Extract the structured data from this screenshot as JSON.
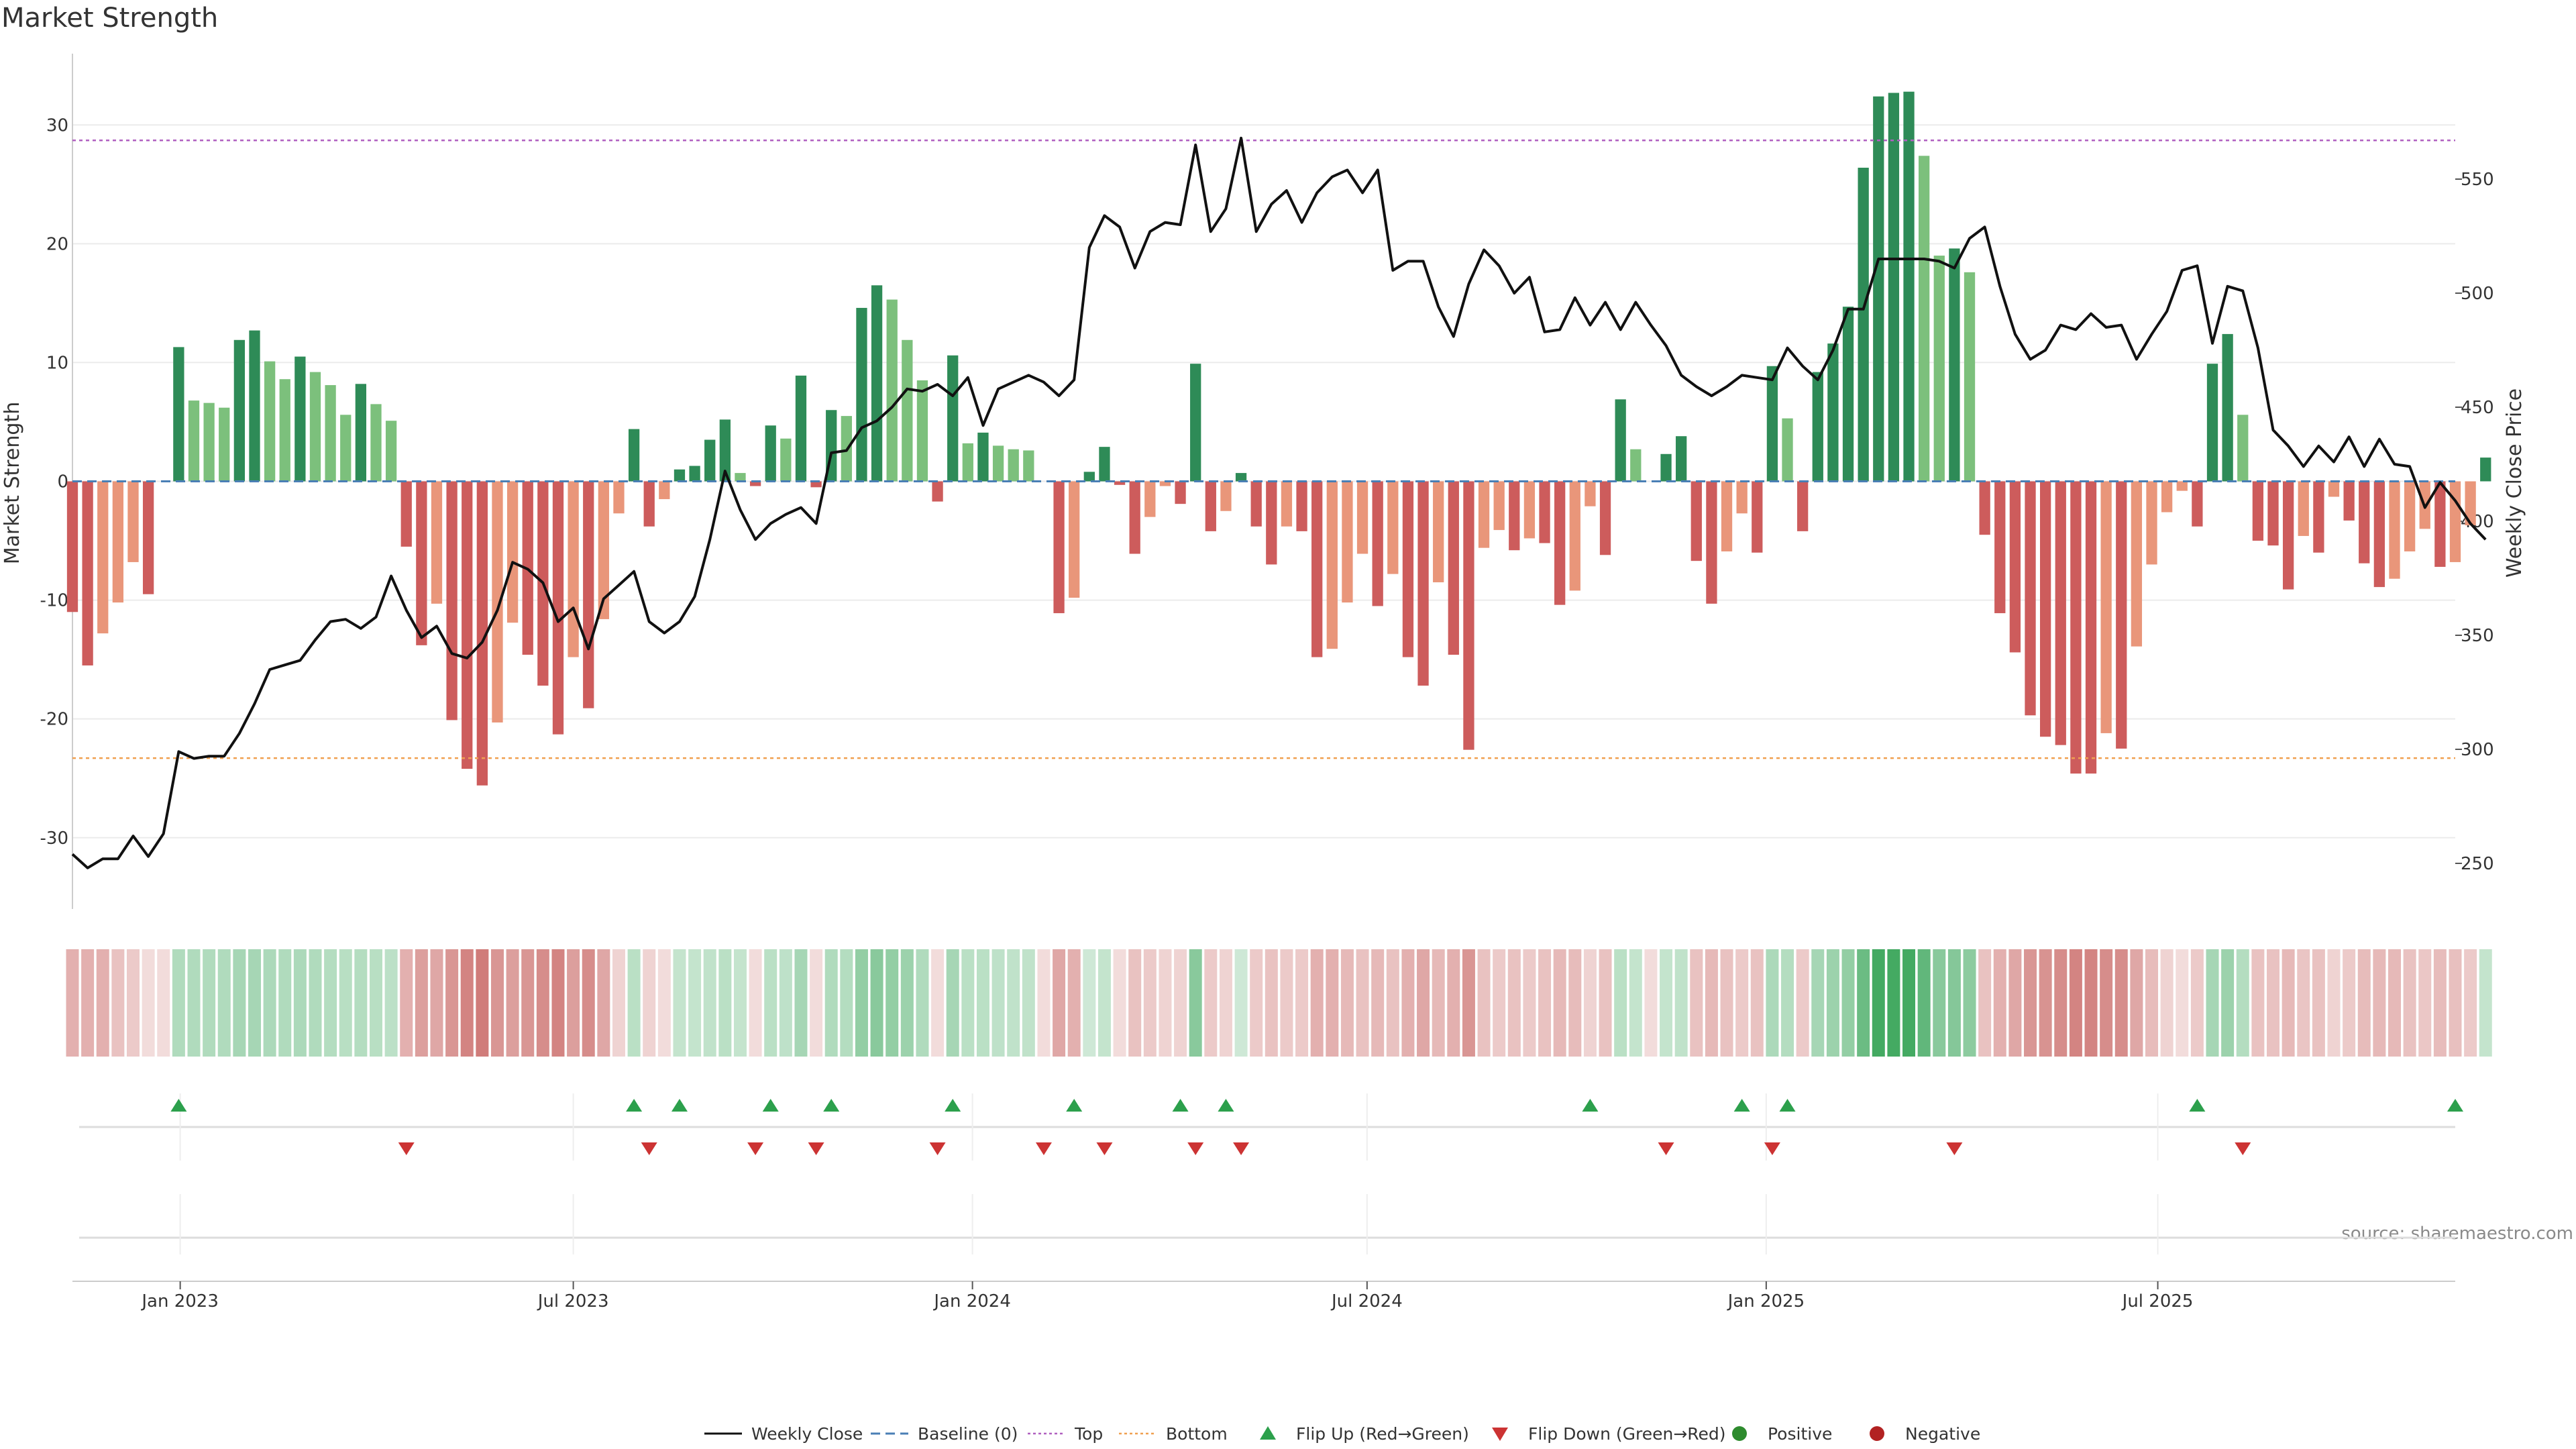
{
  "chart_data": {
    "type": "bar",
    "title": "Market Strength",
    "ylabel": "Market Strength",
    "y2label": "Weekly Close Price",
    "ylim": [
      -36,
      36
    ],
    "y2lim": [
      230,
      605
    ],
    "yticks": [
      -30,
      -20,
      -10,
      0,
      10,
      20,
      30
    ],
    "y2ticks": [
      250,
      300,
      350,
      400,
      450,
      500,
      550
    ],
    "top_line": 28.7,
    "bottom_line": -23.3,
    "colors": {
      "pos_strong": "#2e8b57",
      "pos_weak": "#7cc07c",
      "neg_strong": "#cd5c5c",
      "neg_weak": "#e9967a",
      "price": "#111111",
      "baseline": "#4a7fb5",
      "top": "#b060c0",
      "bottom": "#f0a050",
      "flip_up": "#2ca04c",
      "flip_down": "#cc3333",
      "grid": "#ebebeb",
      "axis": "#cccccc"
    },
    "x_start_week": 0,
    "x_end_week": 157,
    "xtick_labels": [
      {
        "label": "Jan 2023",
        "week": 7.1
      },
      {
        "label": "Jul 2023",
        "week": 33.0
      },
      {
        "label": "Jan 2024",
        "week": 59.3
      },
      {
        "label": "Jul 2024",
        "week": 85.3
      },
      {
        "label": "Jan 2025",
        "week": 111.6
      },
      {
        "label": "Jul 2025",
        "week": 137.4
      }
    ],
    "strength": [
      -11,
      -15.5,
      -12.8,
      -10.2,
      -6.8,
      -9.5,
      0,
      11.3,
      6.8,
      6.6,
      6.2,
      11.9,
      12.7,
      10.1,
      8.6,
      10.5,
      9.2,
      8.1,
      5.6,
      8.2,
      6.5,
      5.1,
      -5.5,
      -13.8,
      -10.3,
      -20.1,
      -24.2,
      -25.6,
      -20.3,
      -11.9,
      -14.6,
      -17.2,
      -21.3,
      -14.8,
      -19.1,
      -11.6,
      -2.7,
      4.4,
      -3.8,
      -1.5,
      1.0,
      1.3,
      3.5,
      5.2,
      0.7,
      -0.4,
      4.7,
      3.6,
      8.9,
      -0.5,
      6.0,
      5.5,
      14.6,
      16.5,
      15.3,
      11.9,
      8.5,
      -1.7,
      10.6,
      3.2,
      4.1,
      3.0,
      2.7,
      2.6,
      0,
      -11.1,
      -9.8,
      0.8,
      2.9,
      -0.3,
      -6.1,
      -3.0,
      -0.4,
      -1.9,
      9.9,
      -4.2,
      -2.5,
      0.7,
      -3.8,
      -7.0,
      -3.8,
      -4.2,
      -14.8,
      -14.1,
      -10.2,
      -6.1,
      -10.5,
      -7.8,
      -14.8,
      -17.2,
      -8.5,
      -14.6,
      -22.6,
      -5.6,
      -4.1,
      -5.8,
      -4.8,
      -5.2,
      -10.4,
      -9.2,
      -2.1,
      -6.2,
      6.9,
      2.7,
      0,
      2.3,
      3.8,
      -6.7,
      -10.3,
      -5.9,
      -2.7,
      -6.0,
      9.7,
      5.3,
      -4.2,
      9.2,
      11.6,
      14.7,
      26.4,
      32.4,
      32.7,
      32.8,
      27.4,
      19.0,
      19.6,
      17.6,
      -4.5,
      -11.1,
      -14.4,
      -19.7,
      -21.5,
      -22.2,
      -24.6,
      -24.6,
      -21.2,
      -22.5,
      -13.9,
      -7.0,
      -2.6,
      -0.8,
      -3.8,
      9.9,
      12.4,
      5.6,
      -5.0,
      -5.4,
      -9.1,
      -4.6,
      -6.0,
      -1.3,
      -3.3,
      -6.9,
      -8.9,
      -8.2,
      -5.9,
      -4.0,
      -7.2,
      -6.8,
      -3.7,
      2.0
    ],
    "weekly_close": [
      254,
      248,
      252,
      252,
      262,
      253,
      263,
      299,
      296,
      297,
      297,
      307,
      320,
      335,
      337,
      339,
      348,
      356,
      357,
      353,
      358,
      376,
      361,
      349,
      354,
      342,
      340,
      347,
      361,
      382,
      379,
      373,
      356,
      362,
      344,
      366,
      372,
      378,
      356,
      351,
      356,
      367,
      392,
      422,
      405,
      392,
      399,
      403,
      406,
      399,
      430,
      431,
      441,
      444,
      450,
      458,
      457,
      460,
      455,
      463,
      442,
      458,
      461,
      464,
      461,
      455,
      462,
      520,
      534,
      529,
      511,
      527,
      531,
      530,
      565,
      527,
      537,
      568,
      527,
      539,
      545,
      531,
      544,
      551,
      554,
      544,
      554,
      510,
      514,
      514,
      494,
      481,
      504,
      519,
      512,
      500,
      507,
      483,
      484,
      498,
      486,
      496,
      484,
      496,
      486,
      477,
      464,
      459,
      455,
      459,
      464,
      463,
      462,
      476,
      468,
      462,
      475,
      493,
      493,
      515,
      515,
      515,
      515,
      514,
      511,
      524,
      529,
      503,
      482,
      471,
      475,
      486,
      484,
      491,
      485,
      486,
      471,
      482,
      492,
      510,
      512,
      478,
      503,
      501,
      476,
      440,
      433,
      424,
      433,
      426,
      437,
      424,
      436,
      425,
      424,
      406,
      417,
      409,
      399,
      392
    ],
    "heat_opacity": [
      0.45,
      0.45,
      0.45,
      0.35,
      0.3,
      0.2,
      0.2,
      0.4,
      0.4,
      0.4,
      0.4,
      0.45,
      0.45,
      0.42,
      0.4,
      0.42,
      0.4,
      0.38,
      0.36,
      0.38,
      0.36,
      0.34,
      0.45,
      0.55,
      0.5,
      0.6,
      0.7,
      0.75,
      0.6,
      0.55,
      0.6,
      0.65,
      0.7,
      0.55,
      0.65,
      0.5,
      0.25,
      0.35,
      0.25,
      0.2,
      0.3,
      0.3,
      0.32,
      0.35,
      0.3,
      0.2,
      0.35,
      0.33,
      0.45,
      0.2,
      0.4,
      0.38,
      0.55,
      0.6,
      0.55,
      0.5,
      0.4,
      0.2,
      0.45,
      0.35,
      0.35,
      0.33,
      0.32,
      0.32,
      0.2,
      0.5,
      0.45,
      0.25,
      0.3,
      0.2,
      0.35,
      0.3,
      0.25,
      0.25,
      0.6,
      0.3,
      0.25,
      0.25,
      0.3,
      0.35,
      0.3,
      0.3,
      0.45,
      0.45,
      0.4,
      0.35,
      0.4,
      0.35,
      0.45,
      0.5,
      0.4,
      0.45,
      0.6,
      0.35,
      0.3,
      0.35,
      0.3,
      0.35,
      0.4,
      0.38,
      0.25,
      0.35,
      0.35,
      0.3,
      0.2,
      0.3,
      0.32,
      0.35,
      0.4,
      0.35,
      0.3,
      0.35,
      0.42,
      0.38,
      0.3,
      0.45,
      0.5,
      0.55,
      0.75,
      0.95,
      0.95,
      0.95,
      0.8,
      0.6,
      0.62,
      0.58,
      0.35,
      0.45,
      0.5,
      0.6,
      0.62,
      0.65,
      0.7,
      0.7,
      0.65,
      0.65,
      0.5,
      0.38,
      0.25,
      0.2,
      0.3,
      0.45,
      0.5,
      0.38,
      0.35,
      0.35,
      0.4,
      0.33,
      0.35,
      0.25,
      0.3,
      0.38,
      0.4,
      0.4,
      0.35,
      0.32,
      0.38,
      0.36,
      0.3,
      0.3
    ],
    "flip_up_weeks": [
      7,
      37,
      40,
      46,
      50,
      58,
      66,
      73,
      76,
      100,
      110,
      113,
      140,
      157
    ],
    "flip_down_weeks": [
      22,
      38,
      45,
      49,
      57,
      64,
      68,
      74,
      77,
      105,
      112,
      124,
      143
    ],
    "legend": [
      {
        "label": "Weekly Close",
        "kind": "line"
      },
      {
        "label": "Baseline (0)",
        "kind": "dash"
      },
      {
        "label": "Top",
        "kind": "dot-purple"
      },
      {
        "label": "Bottom",
        "kind": "dot-orange"
      },
      {
        "label": "Flip Up (Red→Green)",
        "kind": "tri-up"
      },
      {
        "label": "Flip Down (Green→Red)",
        "kind": "tri-down"
      },
      {
        "label": "Positive",
        "kind": "circle-green"
      },
      {
        "label": "Negative",
        "kind": "circle-red"
      }
    ],
    "source": "source: sharemaestro.com"
  }
}
